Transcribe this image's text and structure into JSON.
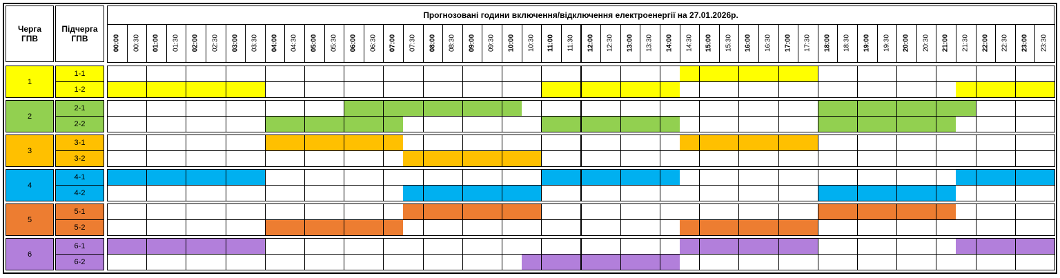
{
  "header": {
    "queue": "Черга ГПВ",
    "subqueue": "Підчерга ГПВ",
    "title": "Прогнозовані години включення/відключення електроенергії на 27.01.2026р.",
    "times": [
      "00:00",
      "00:30",
      "01:00",
      "01:30",
      "02:00",
      "02:30",
      "03:00",
      "03:30",
      "04:00",
      "04:30",
      "05:00",
      "05:30",
      "06:00",
      "06:30",
      "07:00",
      "07:30",
      "08:00",
      "08:30",
      "09:00",
      "09:30",
      "10:00",
      "10:30",
      "11:00",
      "11:30",
      "12:00",
      "12:30",
      "13:00",
      "13:30",
      "14:00",
      "14:30",
      "15:00",
      "15:30",
      "16:00",
      "16:30",
      "17:00",
      "17:30",
      "18:00",
      "18:30",
      "19:00",
      "19:30",
      "20:00",
      "20:30",
      "21:00",
      "21:30",
      "22:00",
      "22:30",
      "23:00",
      "23:30"
    ]
  },
  "groups": [
    {
      "label": "1",
      "color": "#ffff00",
      "subgroups": [
        {
          "label": "1-1",
          "slots": [
            0,
            0,
            0,
            0,
            0,
            0,
            0,
            0,
            0,
            0,
            0,
            0,
            0,
            0,
            0,
            0,
            0,
            0,
            0,
            0,
            0,
            0,
            0,
            0,
            0,
            0,
            0,
            0,
            0,
            1,
            1,
            1,
            1,
            1,
            1,
            1,
            0,
            0,
            0,
            0,
            0,
            0,
            0,
            0,
            0,
            0,
            0,
            0
          ]
        },
        {
          "label": "1-2",
          "slots": [
            1,
            1,
            1,
            1,
            1,
            1,
            1,
            1,
            0,
            0,
            0,
            0,
            0,
            0,
            0,
            0,
            0,
            0,
            0,
            0,
            0,
            0,
            1,
            1,
            1,
            1,
            1,
            1,
            1,
            0,
            0,
            0,
            0,
            0,
            0,
            0,
            0,
            0,
            0,
            0,
            0,
            0,
            0,
            1,
            1,
            1,
            1,
            1
          ]
        }
      ]
    },
    {
      "label": "2",
      "color": "#92d050",
      "subgroups": [
        {
          "label": "2-1",
          "slots": [
            0,
            0,
            0,
            0,
            0,
            0,
            0,
            0,
            0,
            0,
            0,
            0,
            1,
            1,
            1,
            1,
            1,
            1,
            1,
            1,
            1,
            0,
            0,
            0,
            0,
            0,
            0,
            0,
            0,
            0,
            0,
            0,
            0,
            0,
            0,
            0,
            1,
            1,
            1,
            1,
            1,
            1,
            1,
            1,
            0,
            0,
            0,
            0
          ]
        },
        {
          "label": "2-2",
          "slots": [
            0,
            0,
            0,
            0,
            0,
            0,
            0,
            0,
            1,
            1,
            1,
            1,
            1,
            1,
            1,
            0,
            0,
            0,
            0,
            0,
            0,
            0,
            1,
            1,
            1,
            1,
            1,
            1,
            1,
            0,
            0,
            0,
            0,
            0,
            0,
            0,
            1,
            1,
            1,
            1,
            1,
            1,
            1,
            0,
            0,
            0,
            0,
            0
          ]
        }
      ]
    },
    {
      "label": "3",
      "color": "#ffc000",
      "subgroups": [
        {
          "label": "3-1",
          "slots": [
            0,
            0,
            0,
            0,
            0,
            0,
            0,
            0,
            1,
            1,
            1,
            1,
            1,
            1,
            1,
            0,
            0,
            0,
            0,
            0,
            0,
            0,
            0,
            0,
            0,
            0,
            0,
            0,
            0,
            1,
            1,
            1,
            1,
            1,
            1,
            1,
            0,
            0,
            0,
            0,
            0,
            0,
            0,
            0,
            0,
            0,
            0,
            0
          ]
        },
        {
          "label": "3-2",
          "slots": [
            0,
            0,
            0,
            0,
            0,
            0,
            0,
            0,
            0,
            0,
            0,
            0,
            0,
            0,
            0,
            1,
            1,
            1,
            1,
            1,
            1,
            1,
            0,
            0,
            0,
            0,
            0,
            0,
            0,
            0,
            0,
            0,
            0,
            0,
            0,
            0,
            0,
            0,
            0,
            0,
            0,
            0,
            0,
            0,
            0,
            0,
            0,
            0
          ]
        }
      ]
    },
    {
      "label": "4",
      "color": "#00b0f0",
      "subgroups": [
        {
          "label": "4-1",
          "slots": [
            1,
            1,
            1,
            1,
            1,
            1,
            1,
            1,
            0,
            0,
            0,
            0,
            0,
            0,
            0,
            0,
            0,
            0,
            0,
            0,
            0,
            0,
            1,
            1,
            1,
            1,
            1,
            1,
            1,
            0,
            0,
            0,
            0,
            0,
            0,
            0,
            0,
            0,
            0,
            0,
            0,
            0,
            0,
            1,
            1,
            1,
            1,
            1
          ]
        },
        {
          "label": "4-2",
          "slots": [
            0,
            0,
            0,
            0,
            0,
            0,
            0,
            0,
            0,
            0,
            0,
            0,
            0,
            0,
            0,
            1,
            1,
            1,
            1,
            1,
            1,
            1,
            0,
            0,
            0,
            0,
            0,
            0,
            0,
            0,
            0,
            0,
            0,
            0,
            0,
            0,
            1,
            1,
            1,
            1,
            1,
            1,
            1,
            0,
            0,
            0,
            0,
            0
          ]
        }
      ]
    },
    {
      "label": "5",
      "color": "#ed7d31",
      "subgroups": [
        {
          "label": "5-1",
          "slots": [
            0,
            0,
            0,
            0,
            0,
            0,
            0,
            0,
            0,
            0,
            0,
            0,
            0,
            0,
            0,
            1,
            1,
            1,
            1,
            1,
            1,
            1,
            0,
            0,
            0,
            0,
            0,
            0,
            0,
            0,
            0,
            0,
            0,
            0,
            0,
            0,
            1,
            1,
            1,
            1,
            1,
            1,
            1,
            0,
            0,
            0,
            0,
            0
          ]
        },
        {
          "label": "5-2",
          "slots": [
            0,
            0,
            0,
            0,
            0,
            0,
            0,
            0,
            1,
            1,
            1,
            1,
            1,
            1,
            1,
            0,
            0,
            0,
            0,
            0,
            0,
            0,
            0,
            0,
            0,
            0,
            0,
            0,
            0,
            1,
            1,
            1,
            1,
            1,
            1,
            1,
            0,
            0,
            0,
            0,
            0,
            0,
            0,
            0,
            0,
            0,
            0,
            0
          ]
        }
      ]
    },
    {
      "label": "6",
      "color": "#b27fdb",
      "subgroups": [
        {
          "label": "6-1",
          "slots": [
            1,
            1,
            1,
            1,
            1,
            1,
            1,
            1,
            0,
            0,
            0,
            0,
            0,
            0,
            0,
            0,
            0,
            0,
            0,
            0,
            0,
            0,
            0,
            0,
            0,
            0,
            0,
            0,
            0,
            1,
            1,
            1,
            1,
            1,
            1,
            1,
            0,
            0,
            0,
            0,
            0,
            0,
            0,
            1,
            1,
            1,
            1,
            1
          ]
        },
        {
          "label": "6-2",
          "slots": [
            0,
            0,
            0,
            0,
            0,
            0,
            0,
            0,
            0,
            0,
            0,
            0,
            0,
            0,
            0,
            0,
            0,
            0,
            0,
            0,
            0,
            1,
            1,
            1,
            1,
            1,
            1,
            1,
            1,
            0,
            0,
            0,
            0,
            0,
            0,
            0,
            0,
            0,
            0,
            0,
            0,
            0,
            0,
            0,
            0,
            0,
            0,
            0
          ]
        }
      ]
    }
  ]
}
